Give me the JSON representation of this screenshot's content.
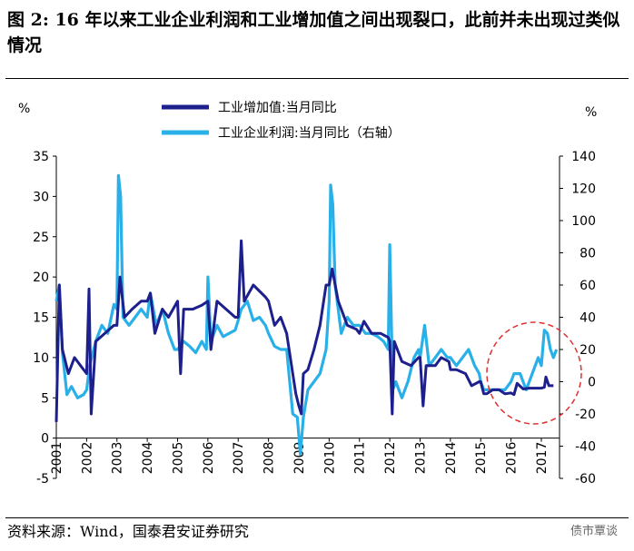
{
  "figure": {
    "title": "图 2: 16 年以来工业企业利润和工业增加值之间出现裂口，此前并未出现过类似情况",
    "source": "资料来源：Wind，国泰君安证券研究",
    "watermark": "债市覃谈"
  },
  "colors": {
    "iva": "#1c1f8c",
    "profit": "#29b0e8",
    "annotation": "#e03030"
  },
  "chart_data": {
    "type": "line",
    "ylabel_left": "%",
    "ylabel_right": "%",
    "ylim_left": [
      -5,
      35
    ],
    "ylim_right": [
      -60,
      140
    ],
    "yticks_left": [
      "35",
      "30",
      "25",
      "20",
      "15",
      "10",
      "5",
      "0",
      "-5"
    ],
    "yticks_right": [
      "140",
      "120",
      "100",
      "80",
      "60",
      "40",
      "20",
      "0",
      "-20",
      "-40",
      "-60"
    ],
    "xlim": [
      2001.0,
      2017.6
    ],
    "xticks": [
      "2001",
      "2002",
      "2003",
      "2004",
      "2005",
      "2006",
      "2007",
      "2008",
      "2009",
      "2010",
      "2011",
      "2012",
      "2013",
      "2014",
      "2015",
      "2016",
      "2017"
    ],
    "legend_position": "top",
    "series": [
      {
        "name": "工业增加值:当月同比",
        "axis": "left",
        "points": [
          [
            2001.0,
            2
          ],
          [
            2001.1,
            19
          ],
          [
            2001.2,
            11
          ],
          [
            2001.4,
            8
          ],
          [
            2001.6,
            10
          ],
          [
            2001.8,
            9
          ],
          [
            2002.0,
            8
          ],
          [
            2002.08,
            18.5
          ],
          [
            2002.15,
            3
          ],
          [
            2002.3,
            12
          ],
          [
            2002.6,
            13
          ],
          [
            2002.9,
            14
          ],
          [
            2003.0,
            14
          ],
          [
            2003.1,
            20
          ],
          [
            2003.25,
            15
          ],
          [
            2003.5,
            16
          ],
          [
            2003.8,
            17
          ],
          [
            2004.0,
            17
          ],
          [
            2004.1,
            18
          ],
          [
            2004.25,
            13
          ],
          [
            2004.5,
            16
          ],
          [
            2004.7,
            15
          ],
          [
            2005.0,
            17
          ],
          [
            2005.1,
            8
          ],
          [
            2005.2,
            16
          ],
          [
            2005.5,
            16
          ],
          [
            2005.8,
            16.5
          ],
          [
            2006.0,
            17
          ],
          [
            2006.1,
            11
          ],
          [
            2006.3,
            17
          ],
          [
            2006.6,
            16
          ],
          [
            2006.9,
            15
          ],
          [
            2007.0,
            15
          ],
          [
            2007.1,
            24.5
          ],
          [
            2007.2,
            17
          ],
          [
            2007.5,
            19
          ],
          [
            2007.9,
            17.5
          ],
          [
            2008.0,
            17
          ],
          [
            2008.2,
            14
          ],
          [
            2008.4,
            15
          ],
          [
            2008.6,
            13
          ],
          [
            2008.8,
            8
          ],
          [
            2008.9,
            5.5
          ],
          [
            2009.0,
            4
          ],
          [
            2009.08,
            3
          ],
          [
            2009.15,
            8
          ],
          [
            2009.3,
            8.5
          ],
          [
            2009.5,
            11
          ],
          [
            2009.7,
            14
          ],
          [
            2009.9,
            19
          ],
          [
            2010.0,
            19
          ],
          [
            2010.1,
            21
          ],
          [
            2010.3,
            17
          ],
          [
            2010.6,
            14
          ],
          [
            2010.9,
            13.5
          ],
          [
            2011.0,
            13
          ],
          [
            2011.15,
            14.5
          ],
          [
            2011.4,
            13
          ],
          [
            2011.7,
            13
          ],
          [
            2011.95,
            12.5
          ],
          [
            2012.0,
            12
          ],
          [
            2012.08,
            3
          ],
          [
            2012.15,
            12
          ],
          [
            2012.4,
            9.5
          ],
          [
            2012.7,
            9
          ],
          [
            2012.95,
            10
          ],
          [
            2013.0,
            10
          ],
          [
            2013.1,
            4
          ],
          [
            2013.2,
            9
          ],
          [
            2013.5,
            9
          ],
          [
            2013.7,
            10
          ],
          [
            2013.95,
            9.5
          ],
          [
            2014.0,
            8.5
          ],
          [
            2014.2,
            8.5
          ],
          [
            2014.5,
            8
          ],
          [
            2014.7,
            6.5
          ],
          [
            2014.95,
            7
          ],
          [
            2015.0,
            7
          ],
          [
            2015.1,
            5.5
          ],
          [
            2015.2,
            5.5
          ],
          [
            2015.4,
            6
          ],
          [
            2015.6,
            6
          ],
          [
            2015.8,
            5.5
          ],
          [
            2016.0,
            5.6
          ],
          [
            2016.1,
            5.4
          ],
          [
            2016.2,
            6.8
          ],
          [
            2016.4,
            6.1
          ],
          [
            2016.6,
            6.2
          ],
          [
            2016.8,
            6.2
          ],
          [
            2017.0,
            6.2
          ],
          [
            2017.1,
            6.3
          ],
          [
            2017.15,
            7.6
          ],
          [
            2017.25,
            6.5
          ],
          [
            2017.4,
            6.5
          ]
        ]
      },
      {
        "name": "工业企业利润:当月同比（右轴）",
        "axis": "right",
        "points": [
          [
            2001.0,
            50
          ],
          [
            2001.1,
            60
          ],
          [
            2001.2,
            18
          ],
          [
            2001.35,
            -8
          ],
          [
            2001.5,
            -3
          ],
          [
            2001.7,
            -10
          ],
          [
            2001.9,
            -8
          ],
          [
            2002.0,
            -5
          ],
          [
            2002.1,
            10
          ],
          [
            2002.3,
            25
          ],
          [
            2002.5,
            35
          ],
          [
            2002.7,
            30
          ],
          [
            2002.9,
            48
          ],
          [
            2003.0,
            45
          ],
          [
            2003.05,
            128
          ],
          [
            2003.12,
            115
          ],
          [
            2003.2,
            40
          ],
          [
            2003.4,
            35
          ],
          [
            2003.6,
            40
          ],
          [
            2003.8,
            45
          ],
          [
            2004.0,
            40
          ],
          [
            2004.1,
            55
          ],
          [
            2004.3,
            35
          ],
          [
            2004.5,
            45
          ],
          [
            2004.7,
            30
          ],
          [
            2004.9,
            20
          ],
          [
            2005.0,
            20
          ],
          [
            2005.2,
            25
          ],
          [
            2005.4,
            22
          ],
          [
            2005.6,
            18
          ],
          [
            2005.8,
            25
          ],
          [
            2005.95,
            20
          ],
          [
            2006.0,
            65
          ],
          [
            2006.1,
            25
          ],
          [
            2006.3,
            35
          ],
          [
            2006.5,
            28
          ],
          [
            2006.7,
            30
          ],
          [
            2006.9,
            32
          ],
          [
            2007.0,
            38
          ],
          [
            2007.1,
            45
          ],
          [
            2007.3,
            50
          ],
          [
            2007.5,
            38
          ],
          [
            2007.7,
            40
          ],
          [
            2007.9,
            35
          ],
          [
            2008.0,
            30
          ],
          [
            2008.2,
            22
          ],
          [
            2008.4,
            20
          ],
          [
            2008.6,
            20
          ],
          [
            2008.8,
            -20
          ],
          [
            2008.95,
            -22
          ],
          [
            2009.05,
            -45
          ],
          [
            2009.15,
            -22
          ],
          [
            2009.3,
            -5
          ],
          [
            2009.5,
            0
          ],
          [
            2009.7,
            5
          ],
          [
            2009.9,
            20
          ],
          [
            2010.0,
            50
          ],
          [
            2010.05,
            122
          ],
          [
            2010.12,
            110
          ],
          [
            2010.2,
            60
          ],
          [
            2010.4,
            30
          ],
          [
            2010.6,
            40
          ],
          [
            2010.8,
            35
          ],
          [
            2010.95,
            35
          ],
          [
            2011.0,
            35
          ],
          [
            2011.2,
            30
          ],
          [
            2011.4,
            30
          ],
          [
            2011.6,
            28
          ],
          [
            2011.8,
            25
          ],
          [
            2011.95,
            20
          ],
          [
            2012.0,
            85
          ],
          [
            2012.1,
            -5
          ],
          [
            2012.2,
            0
          ],
          [
            2012.4,
            -10
          ],
          [
            2012.6,
            0
          ],
          [
            2012.8,
            15
          ],
          [
            2012.95,
            20
          ],
          [
            2013.0,
            15
          ],
          [
            2013.15,
            35
          ],
          [
            2013.3,
            10
          ],
          [
            2013.5,
            15
          ],
          [
            2013.7,
            20
          ],
          [
            2013.9,
            15
          ],
          [
            2014.0,
            15
          ],
          [
            2014.2,
            10
          ],
          [
            2014.4,
            15
          ],
          [
            2014.6,
            20
          ],
          [
            2014.8,
            10
          ],
          [
            2014.95,
            5
          ],
          [
            2015.0,
            0
          ],
          [
            2015.1,
            -5
          ],
          [
            2015.2,
            -5
          ],
          [
            2015.4,
            -5
          ],
          [
            2015.6,
            -5
          ],
          [
            2015.8,
            -5
          ],
          [
            2016.0,
            0
          ],
          [
            2016.1,
            5
          ],
          [
            2016.3,
            5
          ],
          [
            2016.5,
            -5
          ],
          [
            2016.7,
            5
          ],
          [
            2016.9,
            15
          ],
          [
            2017.0,
            10
          ],
          [
            2017.1,
            32
          ],
          [
            2017.2,
            30
          ],
          [
            2017.3,
            20
          ],
          [
            2017.4,
            15
          ],
          [
            2017.5,
            20
          ]
        ]
      }
    ]
  }
}
